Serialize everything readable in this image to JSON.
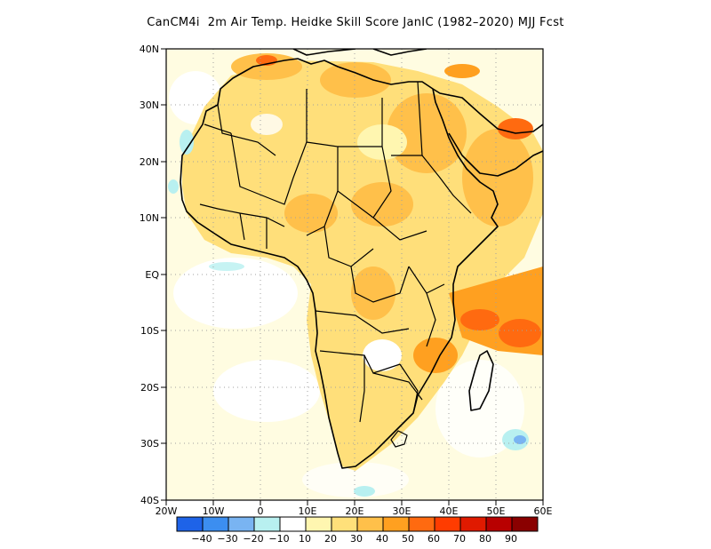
{
  "title": "CanCM4i  2m Air Temp. Heidke Skill Score JanIC (1982–2020) MJJ Fcst",
  "axes": {
    "lat_labels": [
      "40N",
      "30N",
      "20N",
      "10N",
      "EQ",
      "10S",
      "20S",
      "30S",
      "40S"
    ],
    "lon_labels": [
      "20W",
      "10W",
      "0",
      "10E",
      "20E",
      "30E",
      "40E",
      "50E",
      "60E"
    ]
  },
  "colorbar": {
    "labels": [
      "−40",
      "−30",
      "−20",
      "−10",
      "10",
      "20",
      "30",
      "40",
      "50",
      "60",
      "70",
      "80",
      "90"
    ],
    "colors": [
      "#1e63e8",
      "#3c8ef0",
      "#79b4f2",
      "#b8f0f0",
      "#ffffff",
      "#fff6b0",
      "#ffe07a",
      "#ffc04a",
      "#ffa020",
      "#ff6a10",
      "#ff3c00",
      "#e01a00",
      "#b80000",
      "#8a0000"
    ]
  },
  "map": {
    "land_outline_color": "#000000",
    "grid_color": "#a0a0a0",
    "ocean_color": "#ffffff"
  }
}
